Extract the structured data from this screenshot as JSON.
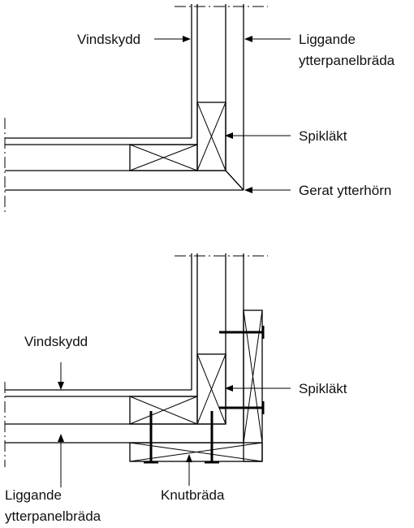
{
  "top_detail": {
    "labels": {
      "wind_barrier": "Vindskydd",
      "horizontal_cladding_line1": "Liggande",
      "horizontal_cladding_line2": "ytterpanelbräda",
      "nailing_batten": "Spikläkt",
      "mitred_corner": "Gerat ytterhörn"
    }
  },
  "bottom_detail": {
    "labels": {
      "wind_barrier": "Vindskydd",
      "nailing_batten": "Spikläkt",
      "horizontal_cladding_line1": "Liggande",
      "horizontal_cladding_line2": "ytterpanelbräda",
      "corner_board": "Knutbräda"
    }
  }
}
